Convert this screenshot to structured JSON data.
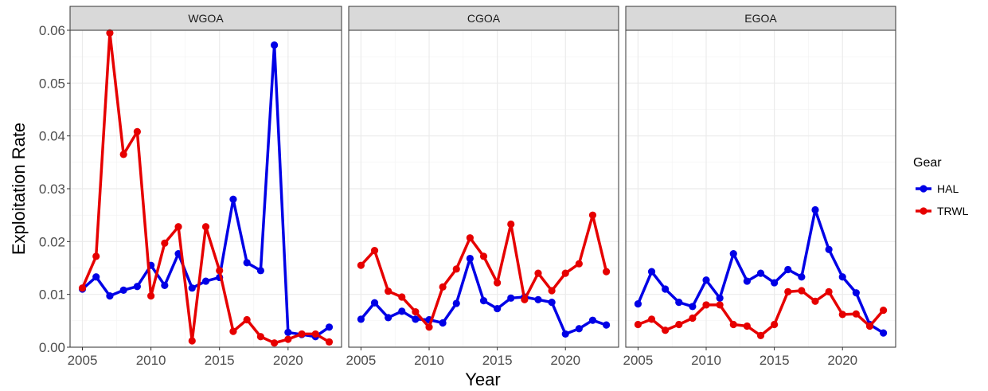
{
  "chart_data": {
    "type": "line",
    "ylabel": "Exploitation Rate",
    "xlabel": "Year",
    "x_ticks": [
      2005,
      2010,
      2015,
      2020
    ],
    "y_ticks": [
      0.0,
      0.01,
      0.02,
      0.03,
      0.04,
      0.05,
      0.06
    ],
    "y_tick_labels": [
      "0.00",
      "0.01",
      "0.02",
      "0.03",
      "0.04",
      "0.05",
      "0.06"
    ],
    "xlim": [
      2004.1,
      2023.9
    ],
    "ylim": [
      0,
      0.06
    ],
    "grid": true,
    "legend": {
      "title": "Gear",
      "position": "right",
      "entries": [
        {
          "name": "HAL",
          "color": "#0000e6"
        },
        {
          "name": "TRWL",
          "color": "#e60000"
        }
      ]
    },
    "x": [
      2005,
      2006,
      2007,
      2008,
      2009,
      2010,
      2011,
      2012,
      2013,
      2014,
      2015,
      2016,
      2017,
      2018,
      2019,
      2020,
      2021,
      2022,
      2023
    ],
    "panels": [
      {
        "title": "WGOA",
        "series": [
          {
            "name": "HAL",
            "color": "#0000e6",
            "values": [
              0.011,
              0.0133,
              0.0097,
              0.0108,
              0.0115,
              0.0155,
              0.0117,
              0.0177,
              0.0112,
              0.0125,
              0.0132,
              0.028,
              0.016,
              0.0145,
              0.0572,
              0.0028,
              0.0024,
              0.002,
              0.0038
            ]
          },
          {
            "name": "TRWL",
            "color": "#e60000",
            "values": [
              0.0112,
              0.0172,
              0.0595,
              0.0365,
              0.0408,
              0.0097,
              0.0197,
              0.0228,
              0.0012,
              0.0228,
              0.0145,
              0.003,
              0.0052,
              0.002,
              0.0008,
              0.0015,
              0.0025,
              0.0025,
              0.001
            ]
          }
        ]
      },
      {
        "title": "CGOA",
        "series": [
          {
            "name": "HAL",
            "color": "#0000e6",
            "values": [
              0.0053,
              0.0084,
              0.0056,
              0.0068,
              0.0053,
              0.0052,
              0.0046,
              0.0083,
              0.0168,
              0.0088,
              0.0073,
              0.0093,
              0.0095,
              0.009,
              0.0085,
              0.0025,
              0.0035,
              0.0051,
              0.0042
            ]
          },
          {
            "name": "TRWL",
            "color": "#e60000",
            "values": [
              0.0155,
              0.0183,
              0.0106,
              0.0095,
              0.0067,
              0.0038,
              0.0114,
              0.0148,
              0.0207,
              0.0172,
              0.0122,
              0.0233,
              0.009,
              0.014,
              0.0107,
              0.014,
              0.0158,
              0.025,
              0.0143
            ]
          }
        ]
      },
      {
        "title": "EGOA",
        "series": [
          {
            "name": "HAL",
            "color": "#0000e6",
            "values": [
              0.0082,
              0.0143,
              0.011,
              0.0085,
              0.0077,
              0.0127,
              0.0093,
              0.0177,
              0.0125,
              0.014,
              0.0122,
              0.0147,
              0.0133,
              0.026,
              0.0185,
              0.0133,
              0.0103,
              0.0043,
              0.0027
            ]
          },
          {
            "name": "TRWL",
            "color": "#e60000",
            "values": [
              0.0043,
              0.0053,
              0.0032,
              0.0043,
              0.0055,
              0.008,
              0.008,
              0.0043,
              0.004,
              0.0022,
              0.0043,
              0.0105,
              0.0107,
              0.0087,
              0.0105,
              0.0062,
              0.0063,
              0.004,
              0.007
            ]
          }
        ]
      }
    ]
  }
}
